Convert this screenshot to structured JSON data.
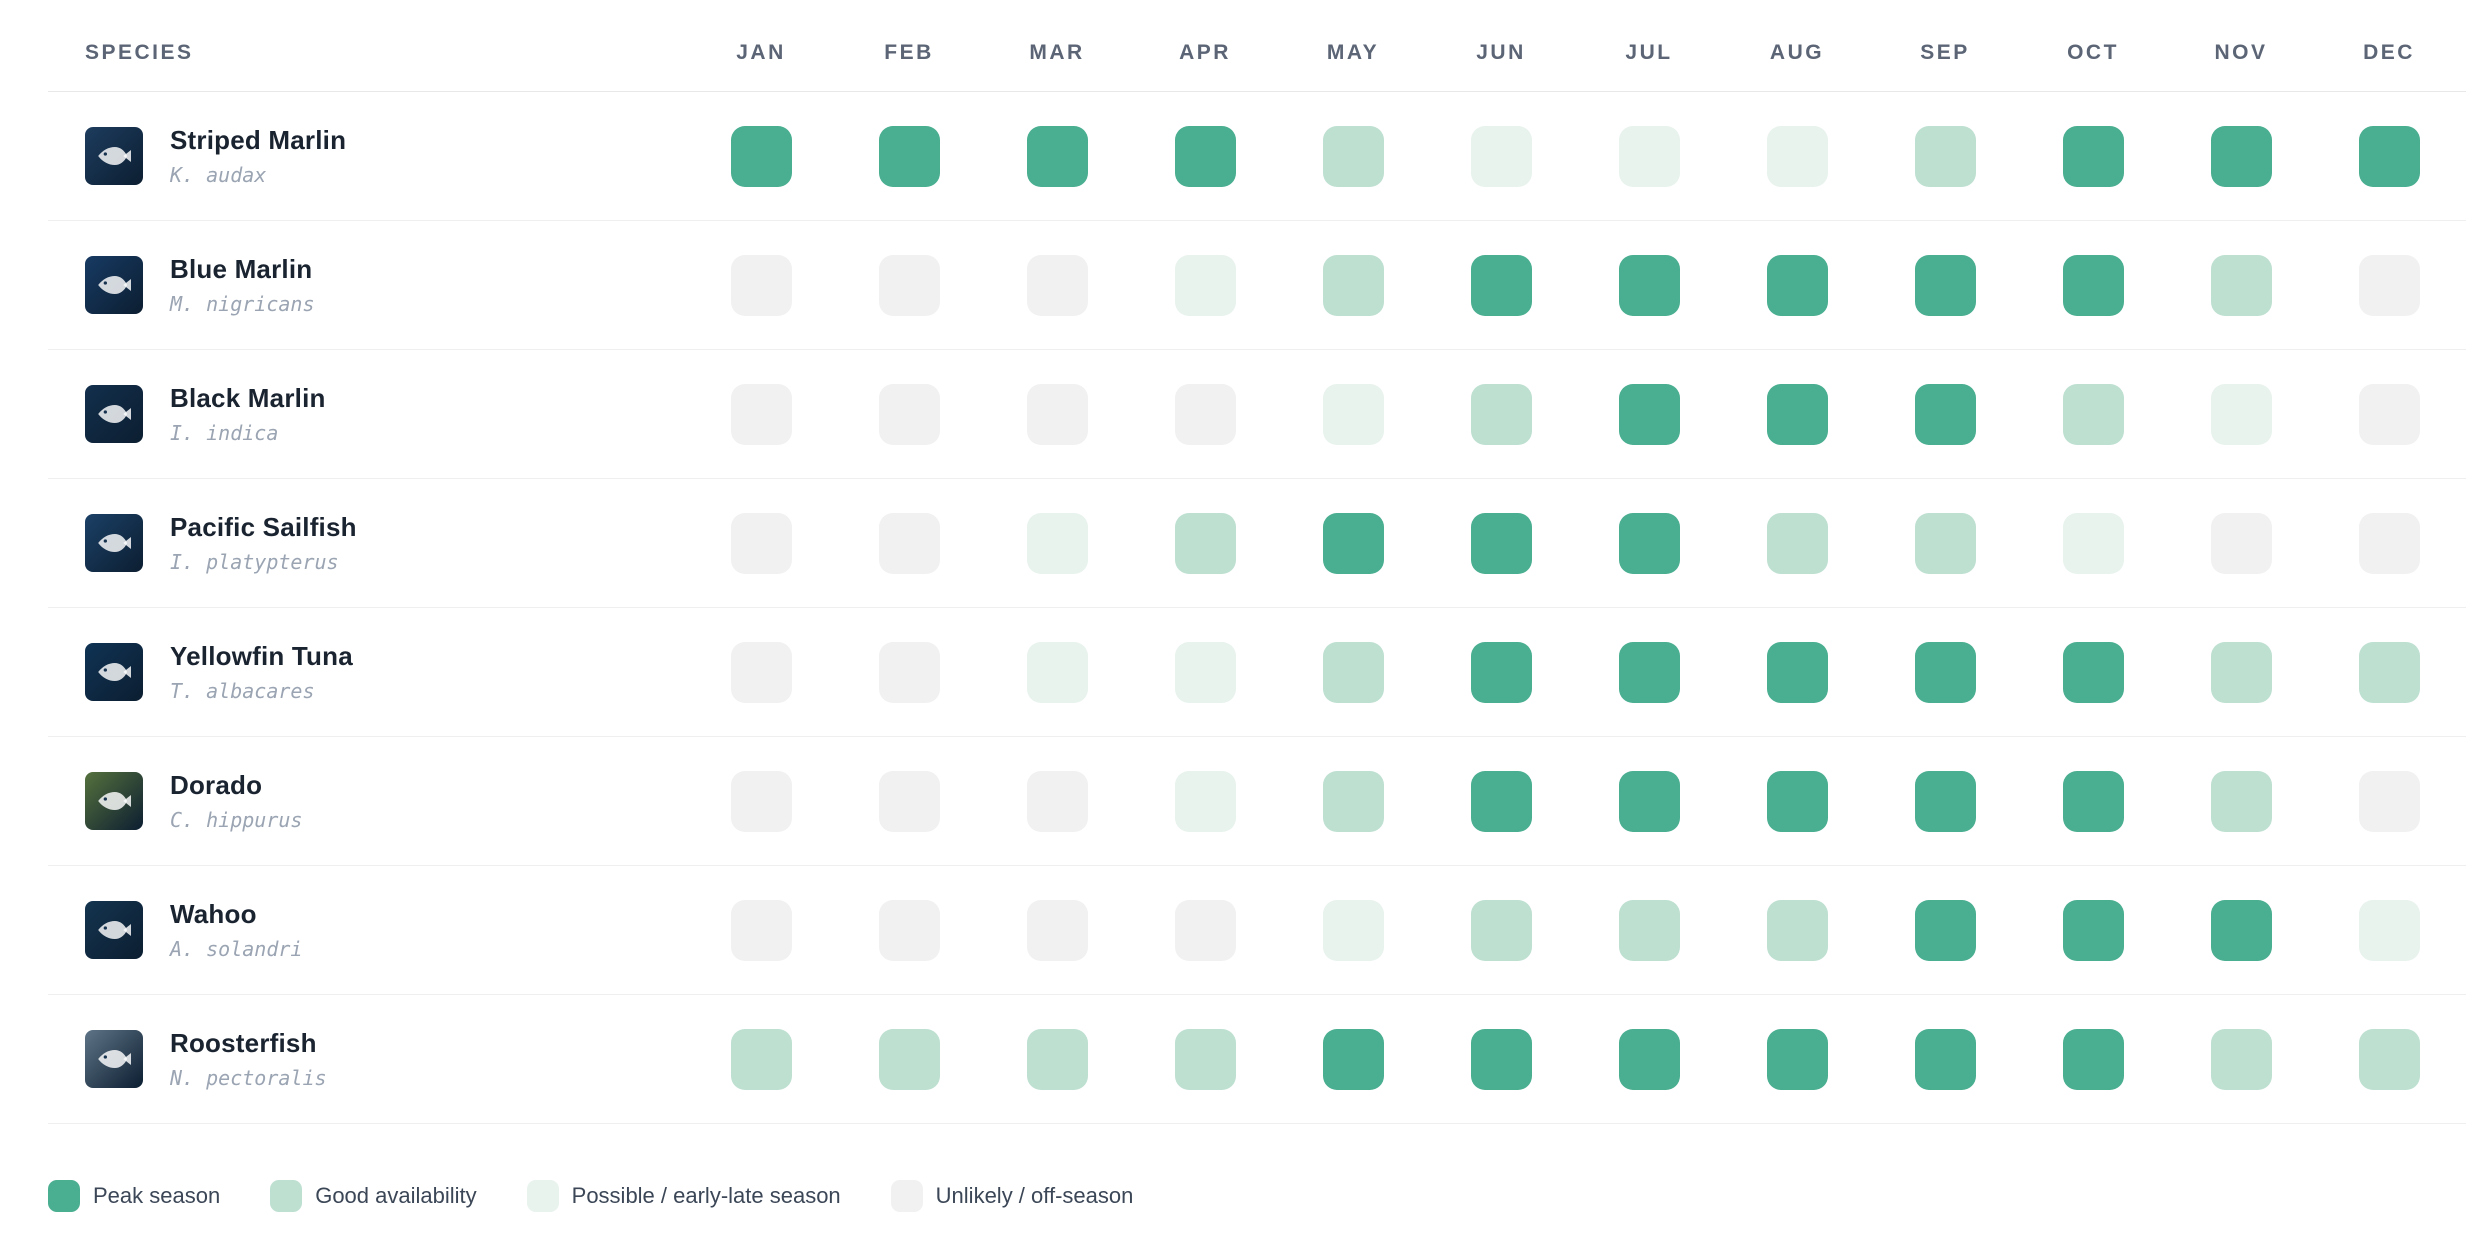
{
  "chart_data": {
    "type": "heatmap",
    "row_header": "SPECIES",
    "columns": [
      "JAN",
      "FEB",
      "MAR",
      "APR",
      "MAY",
      "JUN",
      "JUL",
      "AUG",
      "SEP",
      "OCT",
      "NOV",
      "DEC"
    ],
    "rows": [
      {
        "name": "Striped Marlin",
        "scientific": "K. audax",
        "values": [
          3,
          3,
          3,
          3,
          2,
          1,
          1,
          1,
          2,
          3,
          3,
          3
        ],
        "thumb_color": "#1d3c5e"
      },
      {
        "name": "Blue Marlin",
        "scientific": "M. nigricans",
        "values": [
          0,
          0,
          0,
          1,
          2,
          3,
          3,
          3,
          3,
          3,
          2,
          0
        ],
        "thumb_color": "#173a63"
      },
      {
        "name": "Black Marlin",
        "scientific": "I. indica",
        "values": [
          0,
          0,
          0,
          0,
          1,
          2,
          3,
          3,
          3,
          2,
          1,
          0
        ],
        "thumb_color": "#122f4c"
      },
      {
        "name": "Pacific Sailfish",
        "scientific": "I. platypterus",
        "values": [
          0,
          0,
          1,
          2,
          3,
          3,
          3,
          2,
          2,
          1,
          0,
          0
        ],
        "thumb_color": "#1b4066"
      },
      {
        "name": "Yellowfin Tuna",
        "scientific": "T. albacares",
        "values": [
          0,
          0,
          1,
          1,
          2,
          3,
          3,
          3,
          3,
          3,
          2,
          2
        ],
        "thumb_color": "#0f3354"
      },
      {
        "name": "Dorado",
        "scientific": "C. hippurus",
        "values": [
          0,
          0,
          0,
          1,
          2,
          3,
          3,
          3,
          3,
          3,
          2,
          0
        ],
        "thumb_color": "#55713d"
      },
      {
        "name": "Wahoo",
        "scientific": "A. solandri",
        "values": [
          0,
          0,
          0,
          0,
          1,
          2,
          2,
          2,
          3,
          3,
          3,
          1
        ],
        "thumb_color": "#14344f"
      },
      {
        "name": "Roosterfish",
        "scientific": "N. pectoralis",
        "values": [
          2,
          2,
          2,
          2,
          3,
          3,
          3,
          3,
          3,
          3,
          2,
          2
        ],
        "thumb_color": "#5e7486"
      }
    ],
    "levels": {
      "0": {
        "label": "Unlikely / off-season",
        "color": "#F1F1F2"
      },
      "1": {
        "label": "Possible / early-late season",
        "color": "#E8F3ED"
      },
      "2": {
        "label": "Good availability",
        "color": "#BEE0D1"
      },
      "3": {
        "label": "Peak season",
        "color": "#4AAE90"
      }
    },
    "legend_order": [
      3,
      2,
      1,
      0
    ],
    "title": "",
    "grid": false,
    "legend_position": "bottom-left"
  }
}
